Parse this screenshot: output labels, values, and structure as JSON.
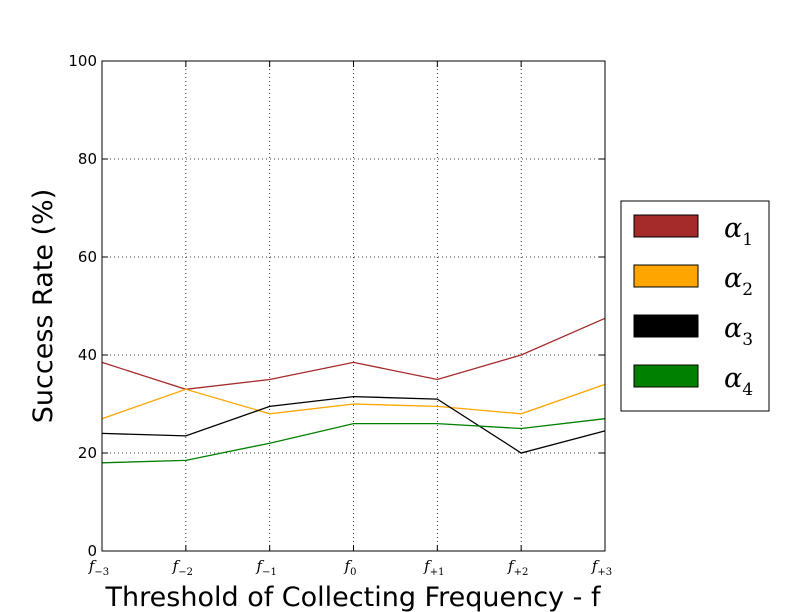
{
  "chart_data": {
    "type": "line",
    "title": "",
    "xlabel": "Threshold of Collecting Frequency - f",
    "ylabel": "Success Rate (%)",
    "x_ticks": [
      {
        "base": "f",
        "sub": "−3"
      },
      {
        "base": "f",
        "sub": "−2"
      },
      {
        "base": "f",
        "sub": "−1"
      },
      {
        "base": "f",
        "sub": "0"
      },
      {
        "base": "f",
        "sub": "+1"
      },
      {
        "base": "f",
        "sub": "+2"
      },
      {
        "base": "f",
        "sub": "+3"
      }
    ],
    "y_ticks": [
      "0",
      "20",
      "40",
      "60",
      "80",
      "100"
    ],
    "ylim": [
      0,
      100
    ],
    "grid": true,
    "legend_position": "outside-right",
    "series": [
      {
        "name": "α",
        "name_sub": "1",
        "color": "#a52a2a",
        "values": [
          38.5,
          33,
          35,
          38.5,
          35,
          40,
          47.5
        ]
      },
      {
        "name": "α",
        "name_sub": "2",
        "color": "#ffa500",
        "values": [
          27,
          33,
          28,
          30,
          29.5,
          28,
          34
        ]
      },
      {
        "name": "α",
        "name_sub": "3",
        "color": "#000000",
        "values": [
          24,
          23.5,
          29.5,
          31.5,
          31,
          20,
          24.5
        ]
      },
      {
        "name": "α",
        "name_sub": "4",
        "color": "#008000",
        "values": [
          18,
          18.5,
          22,
          26,
          26,
          25,
          27
        ]
      }
    ]
  }
}
